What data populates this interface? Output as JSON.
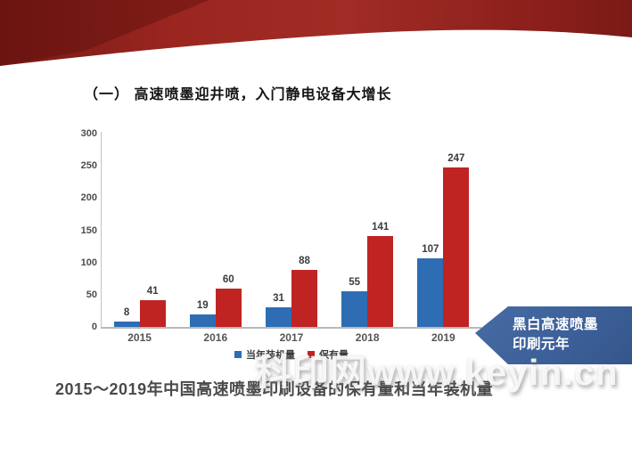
{
  "slide": {
    "title": "（一） 高速喷墨迎井喷，入门静电设备大增长",
    "caption": "2015～2019年中国高速喷墨印刷设备的保有量和当年装机量",
    "watermark": "科印网www.keyin.cn",
    "callout": {
      "line1": "黑白高速喷墨",
      "line2": "印刷元年"
    }
  },
  "colors": {
    "series_blue": "#2E6DB4",
    "series_red": "#BF2422",
    "ribbon_red": "#9B2620",
    "callout_blue": "#3C6099"
  },
  "chart_data": {
    "type": "bar",
    "categories": [
      "2015",
      "2016",
      "2017",
      "2018",
      "2019"
    ],
    "series": [
      {
        "name": "当年装机量",
        "color": "#2E6DB4",
        "values": [
          8,
          19,
          31,
          55,
          107
        ]
      },
      {
        "name": "保有量",
        "color": "#BF2422",
        "values": [
          41,
          60,
          88,
          141,
          247
        ]
      }
    ],
    "title": "",
    "xlabel": "",
    "ylabel": "",
    "ylim": [
      0,
      300
    ],
    "yticks": [
      0,
      50,
      100,
      150,
      200,
      250,
      300
    ],
    "grid": false,
    "legend_position": "bottom",
    "data_labels": true
  }
}
